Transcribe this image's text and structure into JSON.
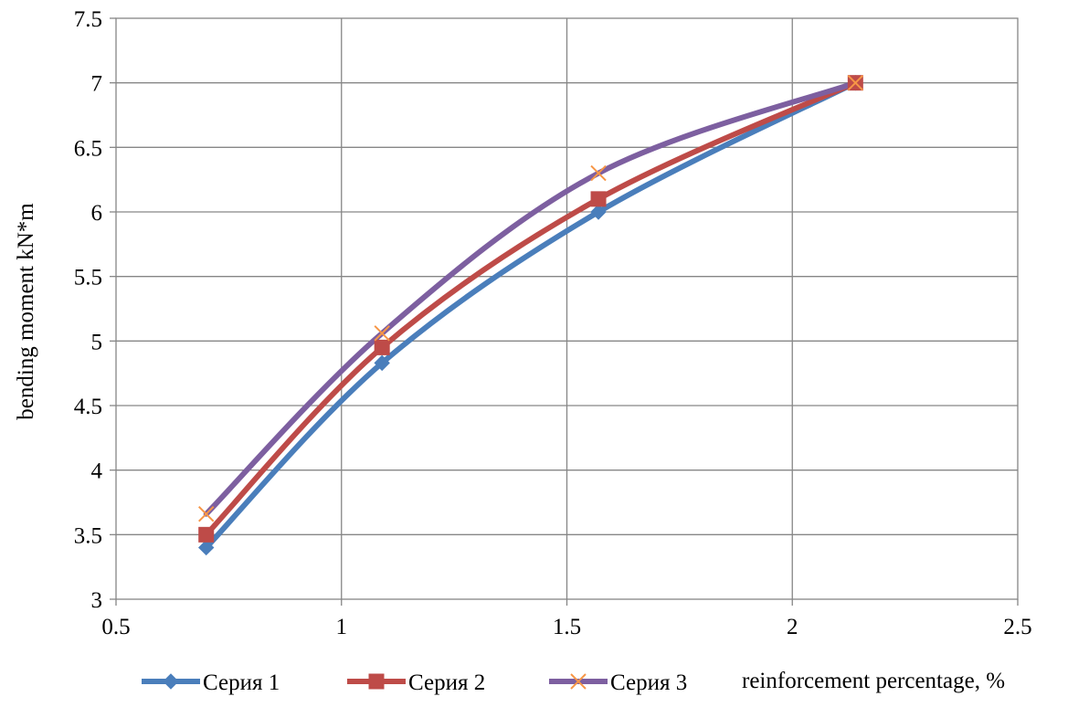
{
  "chart_data": {
    "type": "line",
    "title": "",
    "xlabel": "reinforcement percentage, %",
    "ylabel": "bending moment kN*m",
    "xlim": [
      0.5,
      2.5
    ],
    "ylim": [
      3,
      7.5
    ],
    "x_ticks": [
      "0.5",
      "1",
      "1.5",
      "2",
      "2.5"
    ],
    "y_ticks": [
      "3",
      "3.5",
      "4",
      "4.5",
      "5",
      "5.5",
      "6",
      "6.5",
      "7",
      "7.5"
    ],
    "grid": true,
    "smooth": true,
    "legend_position": "bottom",
    "series": [
      {
        "name": "Серия 1",
        "color": "#4a7ebb",
        "marker": "diamond",
        "x": [
          0.7,
          1.09,
          1.57,
          2.14
        ],
        "y": [
          3.4,
          4.83,
          6.0,
          7.0
        ]
      },
      {
        "name": "Серия 2",
        "color": "#be4b48",
        "marker": "square",
        "x": [
          0.7,
          1.09,
          1.57,
          2.14
        ],
        "y": [
          3.5,
          4.95,
          6.1,
          7.0
        ]
      },
      {
        "name": "Серия 3",
        "color": "#7d5fa0",
        "marker": "x",
        "marker_color": "#f79646",
        "x": [
          0.7,
          1.09,
          1.57,
          2.14
        ],
        "y": [
          3.66,
          5.06,
          6.3,
          7.0
        ]
      }
    ]
  }
}
